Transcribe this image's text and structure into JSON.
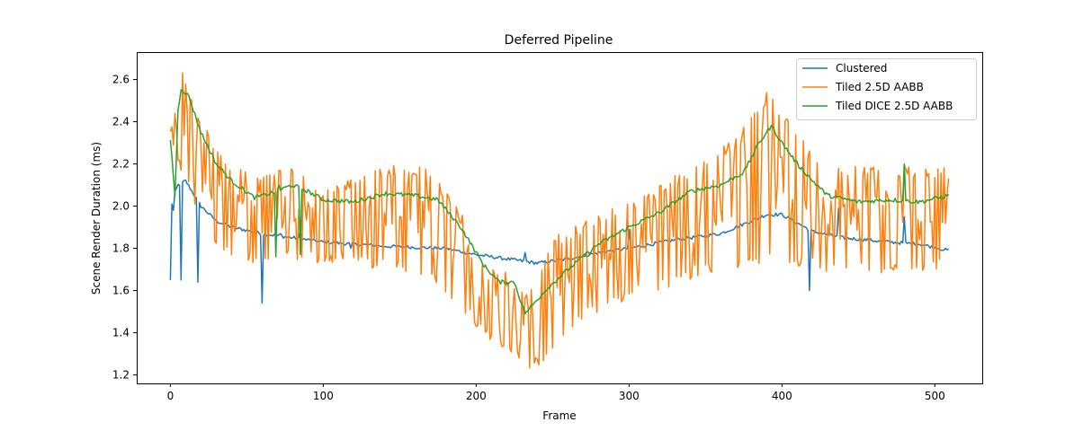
{
  "chart_data": {
    "type": "line",
    "title": "Deferred Pipeline",
    "xlabel": "Frame",
    "ylabel": "Scene Render Duration (ms)",
    "xlim": [
      -22,
      531
    ],
    "ylim": [
      1.16,
      2.73
    ],
    "xticks": [
      0,
      100,
      200,
      300,
      400,
      500
    ],
    "yticks": [
      1.2,
      1.4,
      1.6,
      1.8,
      2.0,
      2.2,
      2.4,
      2.6
    ],
    "ytick_labels": [
      "1.2",
      "1.4",
      "1.6",
      "1.8",
      "2.0",
      "2.2",
      "2.4",
      "2.6"
    ],
    "legend_position": "top-right",
    "grid": false,
    "frame_count": 510,
    "series": [
      {
        "name": "Clustered",
        "color": "#1f77b4",
        "keypoints": [
          [
            0,
            2.01
          ],
          [
            5,
            2.1
          ],
          [
            10,
            2.12
          ],
          [
            20,
            2.0
          ],
          [
            30,
            1.93
          ],
          [
            40,
            1.9
          ],
          [
            60,
            1.87
          ],
          [
            80,
            1.85
          ],
          [
            100,
            1.83
          ],
          [
            140,
            1.81
          ],
          [
            180,
            1.8
          ],
          [
            200,
            1.77
          ],
          [
            220,
            1.75
          ],
          [
            240,
            1.73
          ],
          [
            260,
            1.75
          ],
          [
            280,
            1.78
          ],
          [
            300,
            1.8
          ],
          [
            330,
            1.84
          ],
          [
            360,
            1.87
          ],
          [
            380,
            1.93
          ],
          [
            390,
            1.96
          ],
          [
            400,
            1.96
          ],
          [
            420,
            1.88
          ],
          [
            440,
            1.85
          ],
          [
            470,
            1.83
          ],
          [
            490,
            1.82
          ],
          [
            509,
            1.79
          ]
        ],
        "noise": 0.008,
        "spikes": [
          [
            0,
            1.65
          ],
          [
            1,
            2.01
          ],
          [
            2,
            1.98
          ],
          [
            7,
            1.65
          ],
          [
            18,
            1.64
          ],
          [
            60,
            1.54
          ],
          [
            72,
            1.87
          ],
          [
            85,
            1.89
          ],
          [
            118,
            1.8
          ],
          [
            232,
            1.78
          ],
          [
            300,
            1.89
          ],
          [
            418,
            1.6
          ],
          [
            437,
            1.99
          ],
          [
            480,
            1.95
          ]
        ]
      },
      {
        "name": "Tiled 2.5D AABB",
        "color": "#ff7f0e",
        "upper": [
          [
            0,
            2.39
          ],
          [
            8,
            2.65
          ],
          [
            15,
            2.52
          ],
          [
            25,
            2.35
          ],
          [
            35,
            2.22
          ],
          [
            50,
            2.18
          ],
          [
            60,
            2.17
          ],
          [
            75,
            2.2
          ],
          [
            100,
            2.08
          ],
          [
            120,
            2.15
          ],
          [
            150,
            2.2
          ],
          [
            170,
            2.18
          ],
          [
            190,
            1.97
          ],
          [
            210,
            1.75
          ],
          [
            232,
            1.6
          ],
          [
            250,
            1.85
          ],
          [
            275,
            1.95
          ],
          [
            300,
            2.03
          ],
          [
            320,
            2.1
          ],
          [
            350,
            2.24
          ],
          [
            370,
            2.32
          ],
          [
            390,
            2.54
          ],
          [
            400,
            2.48
          ],
          [
            420,
            2.25
          ],
          [
            440,
            2.2
          ],
          [
            470,
            2.2
          ],
          [
            509,
            2.18
          ]
        ],
        "lower": [
          [
            0,
            2.3
          ],
          [
            8,
            2.15
          ],
          [
            15,
            2.0
          ],
          [
            25,
            1.85
          ],
          [
            35,
            1.75
          ],
          [
            50,
            1.72
          ],
          [
            70,
            1.73
          ],
          [
            100,
            1.73
          ],
          [
            120,
            1.71
          ],
          [
            150,
            1.7
          ],
          [
            170,
            1.64
          ],
          [
            190,
            1.5
          ],
          [
            210,
            1.35
          ],
          [
            225,
            1.27
          ],
          [
            235,
            1.22
          ],
          [
            250,
            1.28
          ],
          [
            270,
            1.45
          ],
          [
            300,
            1.56
          ],
          [
            320,
            1.6
          ],
          [
            350,
            1.68
          ],
          [
            380,
            1.72
          ],
          [
            400,
            1.72
          ],
          [
            420,
            1.7
          ],
          [
            440,
            1.68
          ],
          [
            470,
            1.68
          ],
          [
            509,
            1.7
          ]
        ]
      },
      {
        "name": "Tiled DICE 2.5D AABB",
        "color": "#2ca02c",
        "keypoints": [
          [
            0,
            2.32
          ],
          [
            3,
            2.05
          ],
          [
            5,
            2.45
          ],
          [
            7,
            2.56
          ],
          [
            12,
            2.52
          ],
          [
            20,
            2.35
          ],
          [
            30,
            2.2
          ],
          [
            40,
            2.12
          ],
          [
            55,
            2.04
          ],
          [
            65,
            2.06
          ],
          [
            80,
            2.1
          ],
          [
            90,
            2.07
          ],
          [
            100,
            2.03
          ],
          [
            120,
            2.02
          ],
          [
            140,
            2.06
          ],
          [
            160,
            2.05
          ],
          [
            175,
            2.03
          ],
          [
            190,
            1.9
          ],
          [
            205,
            1.72
          ],
          [
            215,
            1.64
          ],
          [
            225,
            1.64
          ],
          [
            232,
            1.49
          ],
          [
            245,
            1.6
          ],
          [
            260,
            1.7
          ],
          [
            280,
            1.82
          ],
          [
            300,
            1.9
          ],
          [
            320,
            1.97
          ],
          [
            340,
            2.07
          ],
          [
            360,
            2.1
          ],
          [
            375,
            2.16
          ],
          [
            385,
            2.3
          ],
          [
            393,
            2.38
          ],
          [
            400,
            2.3
          ],
          [
            410,
            2.2
          ],
          [
            420,
            2.12
          ],
          [
            430,
            2.05
          ],
          [
            450,
            2.02
          ],
          [
            470,
            2.03
          ],
          [
            490,
            2.02
          ],
          [
            509,
            2.05
          ]
        ],
        "noise": 0.01,
        "spikes": [
          [
            69,
            1.76
          ],
          [
            71,
            2.1
          ],
          [
            85,
            1.77
          ],
          [
            480,
            2.2
          ],
          [
            232,
            1.49
          ]
        ]
      }
    ]
  }
}
